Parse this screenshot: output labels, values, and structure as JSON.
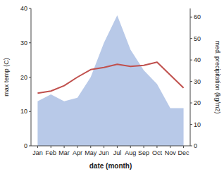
{
  "chart_data": {
    "type": "line",
    "categories": [
      "Jan",
      "Feb",
      "Mar",
      "Apr",
      "May",
      "Jun",
      "Jul",
      "Aug",
      "Sep",
      "Oct",
      "Nov",
      "Dec"
    ],
    "series": [
      {
        "type": "area",
        "color": "#b8c9e8",
        "values": [
          13.0,
          15.0,
          13.0,
          14.0,
          20.0,
          30.0,
          38.0,
          28.0,
          22.0,
          18.0,
          11.0,
          11.0
        ]
      },
      {
        "type": "line",
        "color": "#c0504d",
        "axis": "y2",
        "values": [
          24.5,
          25.5,
          28.0,
          32.0,
          35.5,
          36.5,
          38.0,
          37.0,
          37.5,
          39.0,
          33.0,
          27.0
        ]
      }
    ],
    "xlabel": "date (month)",
    "ylabel": "max temp (C)",
    "y2label": "med. precipitation (kg/m2)",
    "ylim": [
      0,
      40
    ],
    "yticks": [
      0,
      10,
      20,
      30,
      40
    ],
    "y2lim": [
      0,
      64
    ],
    "y2ticks": [
      0,
      10,
      20,
      30,
      40,
      50,
      60
    ],
    "grid": false
  }
}
